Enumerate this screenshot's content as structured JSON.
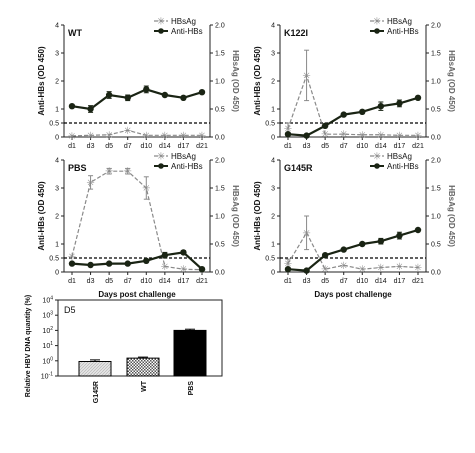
{
  "chart_data": [
    {
      "type": "line",
      "title": "WT",
      "xlabel": "",
      "ylabel": "Anti-HBs (OD 450)",
      "y2label": "HBsAg (OD 450)",
      "categories": [
        "d1",
        "d3",
        "d5",
        "d7",
        "d10",
        "d14",
        "d17",
        "d21"
      ],
      "ylim": [
        0,
        4
      ],
      "y2lim": [
        0,
        2
      ],
      "yticks": [
        "0",
        "1",
        "2",
        "3",
        "4"
      ],
      "y2ticks": [
        "0.0",
        "0.5",
        "1.0",
        "1.5",
        "2.0"
      ],
      "threshold": 0.5,
      "threshold_label": "0.5",
      "legend": "top-right",
      "series": [
        {
          "name": "HBsAg",
          "axis": "right",
          "values": [
            0.02,
            0.03,
            0.04,
            0.12,
            0.03,
            0.03,
            0.03,
            0.03
          ],
          "err": [
            0,
            0,
            0,
            0,
            0,
            0,
            0,
            0
          ]
        },
        {
          "name": "Anti-HBs",
          "axis": "left",
          "values": [
            1.1,
            1.0,
            1.5,
            1.4,
            1.7,
            1.5,
            1.4,
            1.6
          ],
          "err": [
            0.05,
            0.12,
            0.12,
            0.1,
            0.12,
            0.05,
            0.05,
            0.05
          ]
        }
      ]
    },
    {
      "type": "line",
      "title": "K122I",
      "xlabel": "",
      "ylabel": "Anti-HBs (OD 450)",
      "y2label": "HBsAg (OD 450)",
      "categories": [
        "d1",
        "d3",
        "d5",
        "d7",
        "d10",
        "d14",
        "d17",
        "d21"
      ],
      "ylim": [
        0,
        4
      ],
      "y2lim": [
        0,
        2
      ],
      "yticks": [
        "0",
        "1",
        "2",
        "3",
        "4"
      ],
      "y2ticks": [
        "0.0",
        "0.5",
        "1.0",
        "1.5",
        "2.0"
      ],
      "threshold": 0.5,
      "threshold_label": "0.5",
      "legend": "top-right",
      "series": [
        {
          "name": "HBsAg",
          "axis": "right",
          "values": [
            0.15,
            1.1,
            0.05,
            0.05,
            0.04,
            0.04,
            0.03,
            0.03
          ],
          "err": [
            0.1,
            0.45,
            0,
            0,
            0,
            0,
            0,
            0
          ]
        },
        {
          "name": "Anti-HBs",
          "axis": "left",
          "values": [
            0.1,
            0.05,
            0.4,
            0.8,
            0.9,
            1.1,
            1.2,
            1.4
          ],
          "err": [
            0,
            0,
            0,
            0.05,
            0.05,
            0.15,
            0.12,
            0.05
          ]
        }
      ]
    },
    {
      "type": "line",
      "title": "PBS",
      "xlabel": "Days post challenge",
      "ylabel": "Anti-HBs (OD 450)",
      "y2label": "HBsAg (OD 450)",
      "categories": [
        "d1",
        "d3",
        "d5",
        "d7",
        "d10",
        "d14",
        "d17",
        "d21"
      ],
      "ylim": [
        0,
        4
      ],
      "y2lim": [
        0,
        2
      ],
      "yticks": [
        "0",
        "1",
        "2",
        "3",
        "4"
      ],
      "y2ticks": [
        "0.0",
        "0.5",
        "1.0",
        "1.5",
        "2.0"
      ],
      "threshold": 0.5,
      "threshold_label": "0.5",
      "legend": "top-right",
      "series": [
        {
          "name": "HBsAg",
          "axis": "right",
          "values": [
            0.28,
            1.6,
            1.8,
            1.8,
            1.5,
            0.1,
            0.05,
            0.04
          ],
          "err": [
            0,
            0.12,
            0.05,
            0.05,
            0.2,
            0,
            0,
            0
          ]
        },
        {
          "name": "Anti-HBs",
          "axis": "left",
          "values": [
            0.3,
            0.25,
            0.3,
            0.3,
            0.4,
            0.6,
            0.7,
            0.1
          ],
          "err": [
            0,
            0,
            0,
            0,
            0.05,
            0.1,
            0.05,
            0
          ]
        }
      ]
    },
    {
      "type": "line",
      "title": "G145R",
      "xlabel": "Days post challenge",
      "ylabel": "Anti-HBs (OD 450)",
      "y2label": "HBsAg (OD 450)",
      "categories": [
        "d1",
        "d3",
        "d5",
        "d7",
        "d10",
        "d14",
        "d17",
        "d21"
      ],
      "ylim": [
        0,
        4
      ],
      "y2lim": [
        0,
        2
      ],
      "yticks": [
        "0",
        "1",
        "2",
        "3",
        "4"
      ],
      "y2ticks": [
        "0.0",
        "0.5",
        "1.0",
        "1.5",
        "2.0"
      ],
      "threshold": 0.5,
      "threshold_label": "0.5",
      "legend": "top-right",
      "series": [
        {
          "name": "HBsAg",
          "axis": "right",
          "values": [
            0.15,
            0.7,
            0.05,
            0.12,
            0.05,
            0.08,
            0.1,
            0.08
          ],
          "err": [
            0.08,
            0.3,
            0,
            0,
            0,
            0,
            0,
            0
          ]
        },
        {
          "name": "Anti-HBs",
          "axis": "left",
          "values": [
            0.1,
            0.05,
            0.6,
            0.8,
            1.0,
            1.1,
            1.3,
            1.5
          ],
          "err": [
            0,
            0,
            0,
            0,
            0.05,
            0.1,
            0.12,
            0.05
          ]
        }
      ]
    },
    {
      "type": "bar",
      "title": "D5",
      "xlabel": "",
      "ylabel": "Relative HBV DNA quantity (%)",
      "categories": [
        "G145R",
        "WT",
        "PBS"
      ],
      "values": [
        0.9,
        1.5,
        100
      ],
      "err": [
        0.25,
        0.25,
        20
      ],
      "yscale": "log",
      "ylim": [
        0.1,
        10000
      ],
      "yticks": [
        "10-1",
        "100",
        "101",
        "102",
        "103",
        "104"
      ],
      "ytick_values": [
        0.1,
        1,
        10,
        100,
        1000,
        10000
      ],
      "patterns": [
        "light-hatch",
        "checker",
        "solid-black"
      ]
    }
  ]
}
